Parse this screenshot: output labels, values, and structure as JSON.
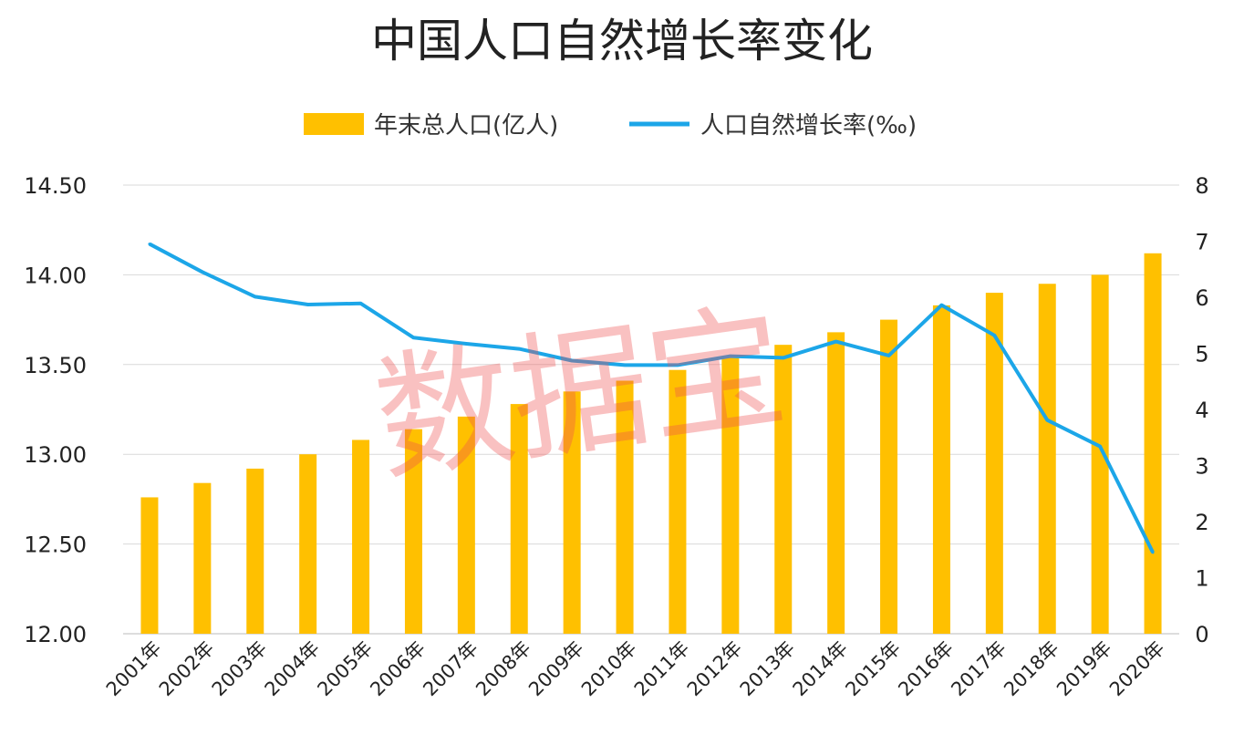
{
  "chart_data": {
    "type": "bar+line",
    "title": "中国人口自然增长率变化",
    "categories": [
      "2001年",
      "2002年",
      "2003年",
      "2004年",
      "2005年",
      "2006年",
      "2007年",
      "2008年",
      "2009年",
      "2010年",
      "2011年",
      "2012年",
      "2013年",
      "2014年",
      "2015年",
      "2016年",
      "2017年",
      "2018年",
      "2019年",
      "2020年"
    ],
    "series": [
      {
        "name": "年末总人口(亿人)",
        "type": "bar",
        "axis": "left",
        "color": "#FFC000",
        "values": [
          12.76,
          12.84,
          12.92,
          13.0,
          13.08,
          13.14,
          13.21,
          13.28,
          13.35,
          13.41,
          13.47,
          13.54,
          13.61,
          13.68,
          13.75,
          13.83,
          13.9,
          13.95,
          14.0,
          14.12
        ]
      },
      {
        "name": "人口自然增长率(‰)",
        "type": "line",
        "axis": "right",
        "color": "#1CA6E8",
        "values": [
          6.95,
          6.45,
          6.01,
          5.87,
          5.89,
          5.28,
          5.17,
          5.08,
          4.87,
          4.79,
          4.79,
          4.95,
          4.92,
          5.21,
          4.96,
          5.86,
          5.32,
          3.81,
          3.34,
          1.45
        ]
      }
    ],
    "left_axis": {
      "ylim": [
        12.0,
        14.5
      ],
      "ticks": [
        "12.00",
        "12.50",
        "13.00",
        "13.50",
        "14.00",
        "14.50"
      ]
    },
    "right_axis": {
      "ylim": [
        0,
        8
      ],
      "ticks": [
        "0",
        "1",
        "2",
        "3",
        "4",
        "5",
        "6",
        "7",
        "8"
      ]
    },
    "grid": true,
    "legend": "top-center",
    "watermark": "数据宝"
  }
}
